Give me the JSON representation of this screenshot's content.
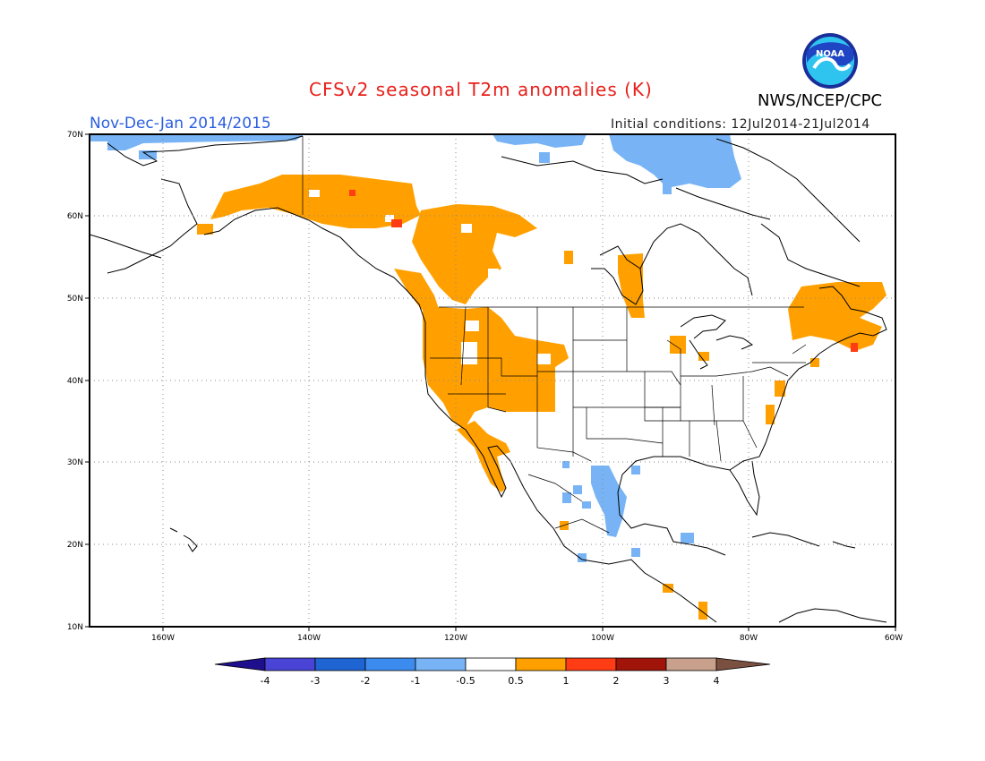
{
  "header": {
    "title": "CFSv2 seasonal T2m anomalies (K)",
    "period": "Nov-Dec-Jan 2014/2015",
    "initial_conditions": "Initial conditions: 12Jul2014-21Jul2014",
    "agency": "NWS/NCEP/CPC",
    "logo_text": "NOAA"
  },
  "map": {
    "projection": "cylindrical lat-lon",
    "lon_range": [
      -170,
      -60
    ],
    "lat_range": [
      10,
      70
    ],
    "lat_ticks": [
      "10N",
      "20N",
      "30N",
      "40N",
      "50N",
      "60N",
      "70N"
    ],
    "lon_ticks": [
      "160W",
      "140W",
      "120W",
      "100W",
      "80W",
      "60W"
    ],
    "gridlines": true
  },
  "colorbar": {
    "labels": [
      "-4",
      "-3",
      "-2",
      "-1",
      "-0.5",
      "0.5",
      "1",
      "2",
      "3",
      "4"
    ],
    "colors": [
      "#1e0f8c",
      "#4a44d6",
      "#1e64d2",
      "#3c8cf0",
      "#78b4f5",
      "#ffffff",
      "#ffa000",
      "#ff3c14",
      "#a0140a",
      "#c8a08c",
      "#7a5040"
    ]
  },
  "anomaly_regions": {
    "warm_05_1": "#ffa000",
    "warm_1_2": "#ff3c14",
    "cool_-1_-0.5": "#78b4f5"
  }
}
